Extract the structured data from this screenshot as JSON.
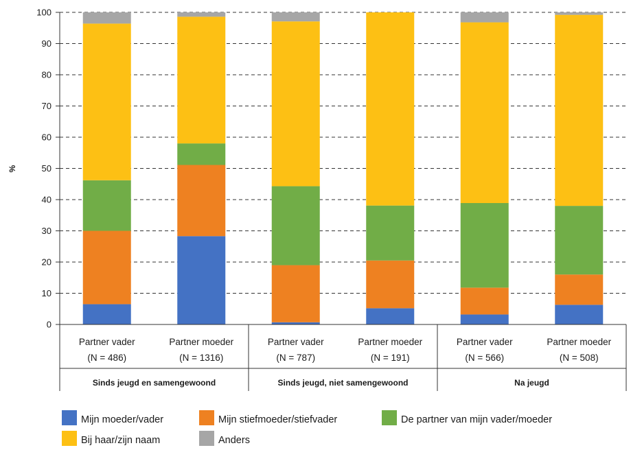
{
  "chart_data": {
    "type": "bar",
    "stacked": true,
    "ylabel": "%",
    "ylim": [
      0,
      100
    ],
    "yticks": [
      0,
      10,
      20,
      30,
      40,
      50,
      60,
      70,
      80,
      90,
      100
    ],
    "grid": true,
    "legend_position": "bottom",
    "groups": [
      {
        "label": "Sinds jeugd en samengewoond",
        "bars": [
          0,
          1
        ]
      },
      {
        "label": "Sinds jeugd, niet samengewoond",
        "bars": [
          2,
          3
        ]
      },
      {
        "label": "Na jeugd",
        "bars": [
          4,
          5
        ]
      }
    ],
    "categories": [
      {
        "line1": "Partner vader",
        "line2": "(N = 486)"
      },
      {
        "line1": "Partner moeder",
        "line2": "(N = 1316)"
      },
      {
        "line1": "Partner vader",
        "line2": "(N = 787)"
      },
      {
        "line1": "Partner moeder",
        "line2": "(N = 191)"
      },
      {
        "line1": "Partner vader",
        "line2": "(N = 566)"
      },
      {
        "line1": "Partner moeder",
        "line2": "(N = 508)"
      }
    ],
    "series": [
      {
        "name": "Mijn moeder/vader",
        "color": "#4472c4",
        "values": [
          6.5,
          28.3,
          0.7,
          5.2,
          3.2,
          6.3
        ]
      },
      {
        "name": "Mijn stiefmoeder/stiefvader",
        "color": "#ee8121",
        "values": [
          23.5,
          22.8,
          18.3,
          15.3,
          8.6,
          9.7
        ]
      },
      {
        "name": "De partner van mijn vader/moeder",
        "color": "#71ad47",
        "values": [
          16.2,
          6.9,
          25.3,
          17.6,
          27.1,
          22.0
        ]
      },
      {
        "name": "Bij haar/zijn naam",
        "color": "#fdc014",
        "values": [
          50.2,
          40.6,
          52.8,
          61.9,
          57.9,
          61.2
        ]
      },
      {
        "name": "Anders",
        "color": "#a6a6a6",
        "values": [
          3.6,
          1.4,
          2.9,
          0.0,
          3.2,
          0.8
        ]
      }
    ]
  }
}
